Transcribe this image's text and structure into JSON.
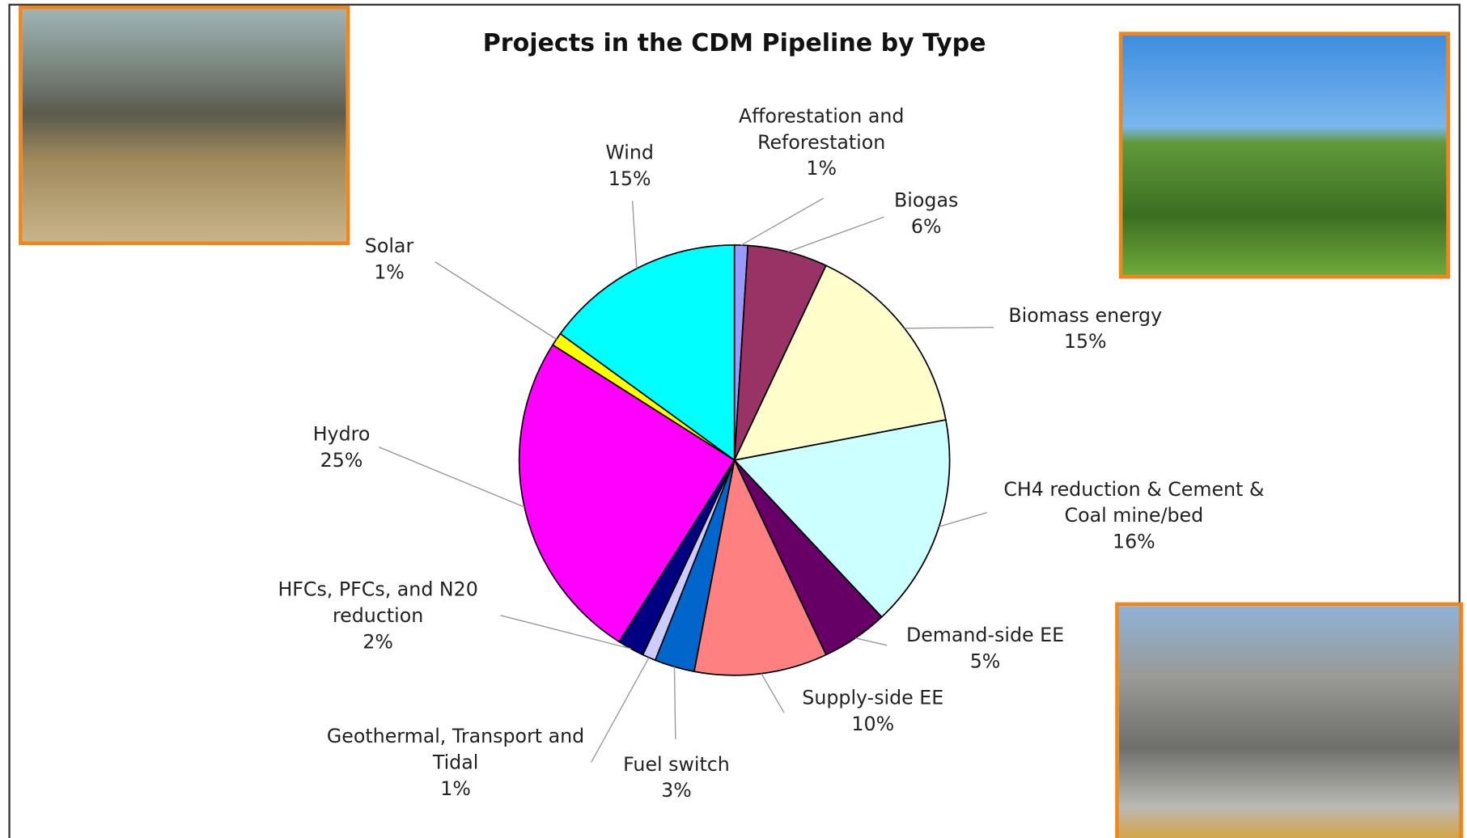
{
  "chart_data": {
    "type": "pie",
    "title": "Projects in the CDM Pipeline by Type",
    "categories": [
      "Afforestation and Reforestation",
      "Biogas",
      "Biomass energy",
      "CH4 reduction & Cement & Coal mine/bed",
      "Demand-side EE",
      "Supply-side EE",
      "Fuel switch",
      "Geothermal, Transport and Tidal",
      "HFCs, PFCs, and N20 reduction",
      "Hydro",
      "Solar",
      "Wind"
    ],
    "values": [
      1,
      6,
      15,
      16,
      5,
      10,
      3,
      1,
      2,
      25,
      1,
      15
    ],
    "value_labels": [
      "1%",
      "6%",
      "15%",
      "16%",
      "5%",
      "10%",
      "3%",
      "1%",
      "2%",
      "25%",
      "1%",
      "15%"
    ],
    "colors": [
      "#9999ff",
      "#993366",
      "#ffffcc",
      "#ccffff",
      "#660066",
      "#ff8080",
      "#0066cc",
      "#ccccff",
      "#000080",
      "#ff00ff",
      "#ffff00",
      "#00ffff"
    ]
  }
}
